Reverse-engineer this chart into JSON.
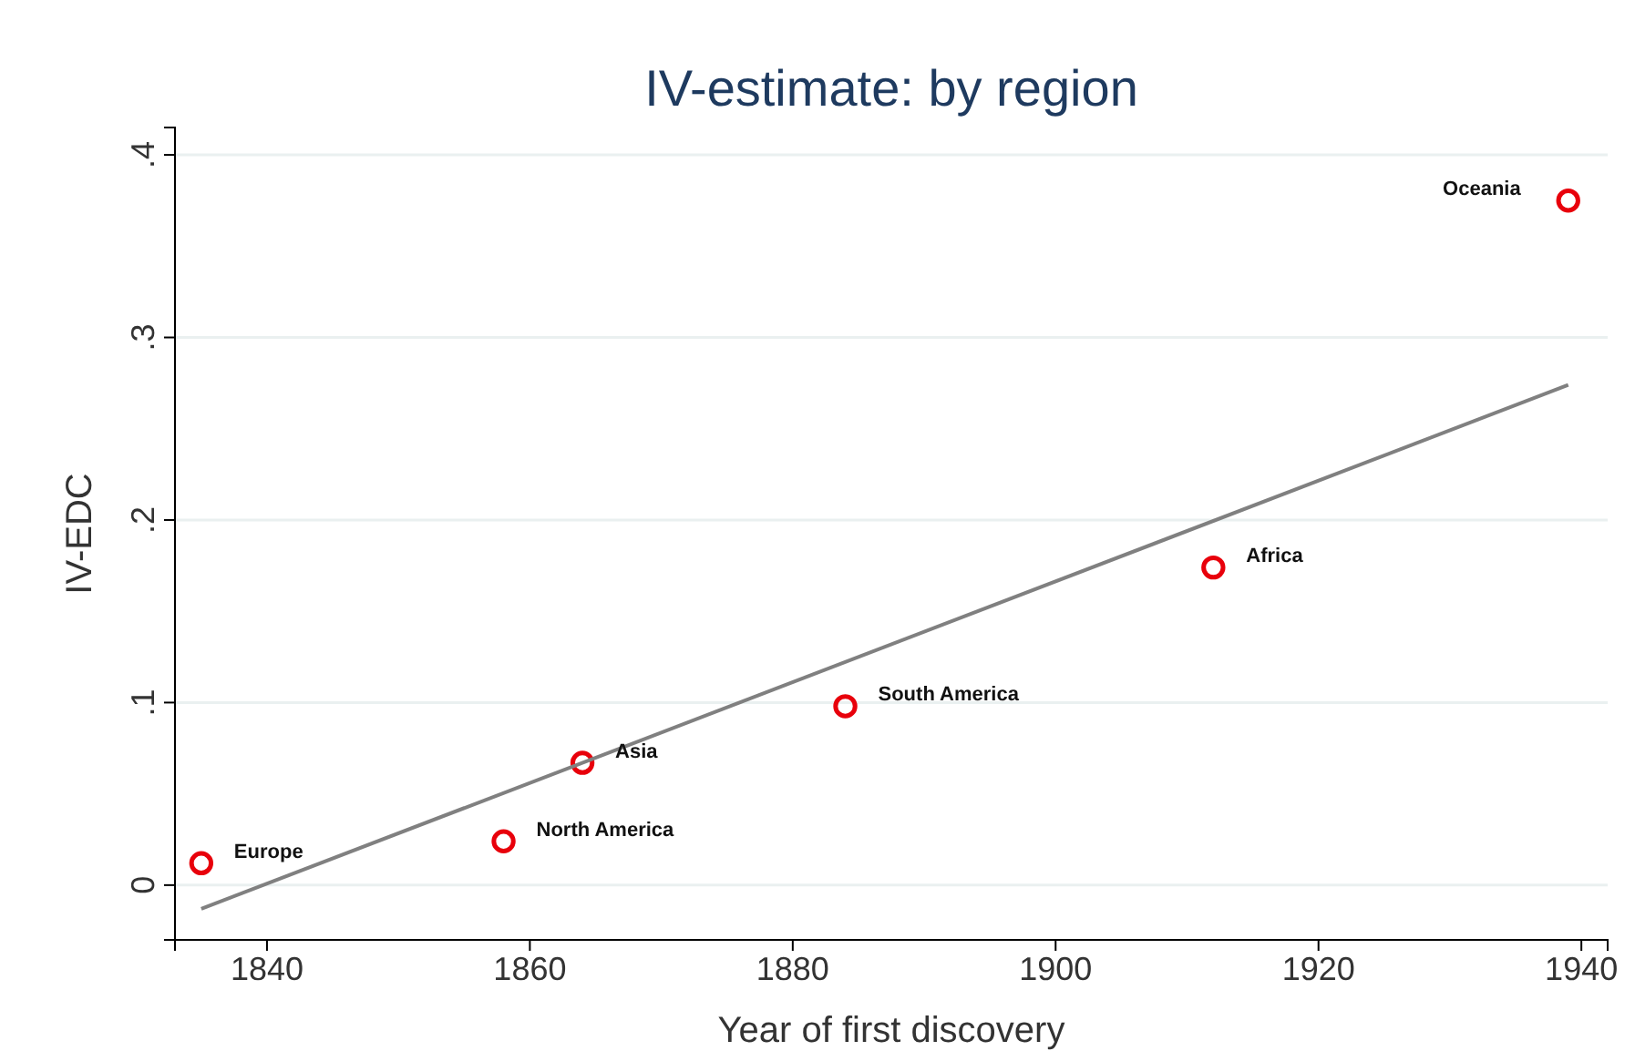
{
  "chart_data": {
    "type": "scatter",
    "title": "IV-estimate: by region",
    "xlabel": "Year of first discovery",
    "ylabel": "IV-EDC",
    "xlim": [
      1833,
      1942
    ],
    "ylim": [
      -0.03,
      0.415
    ],
    "xticks": [
      1840,
      1860,
      1880,
      1900,
      1920,
      1940
    ],
    "yticks": [
      {
        "value": 0,
        "label": "0"
      },
      {
        "value": 0.1,
        "label": ".1"
      },
      {
        "value": 0.2,
        "label": ".2"
      },
      {
        "value": 0.3,
        "label": ".3"
      },
      {
        "value": 0.4,
        "label": ".4"
      }
    ],
    "grid": "y",
    "series": [
      {
        "marker": "circle",
        "color": "#e8000b",
        "x": [
          1835,
          1858,
          1864,
          1884,
          1912,
          1939
        ],
        "values": [
          0.012,
          0.024,
          0.067,
          0.098,
          0.174,
          0.375
        ]
      },
      {
        "type": "line",
        "color": "#808080",
        "x": [
          1835,
          1939
        ],
        "values": [
          -0.013,
          0.274
        ]
      }
    ],
    "annotations": [
      {
        "text": "Europe",
        "x": 1835,
        "y": 0.012
      },
      {
        "text": "North America",
        "x": 1858,
        "y": 0.024
      },
      {
        "text": "Asia",
        "x": 1864,
        "y": 0.067
      },
      {
        "text": "South America",
        "x": 1884,
        "y": 0.098
      },
      {
        "text": "Africa",
        "x": 1912,
        "y": 0.174
      },
      {
        "text": "Oceania",
        "x": 1939,
        "y": 0.375
      }
    ]
  }
}
